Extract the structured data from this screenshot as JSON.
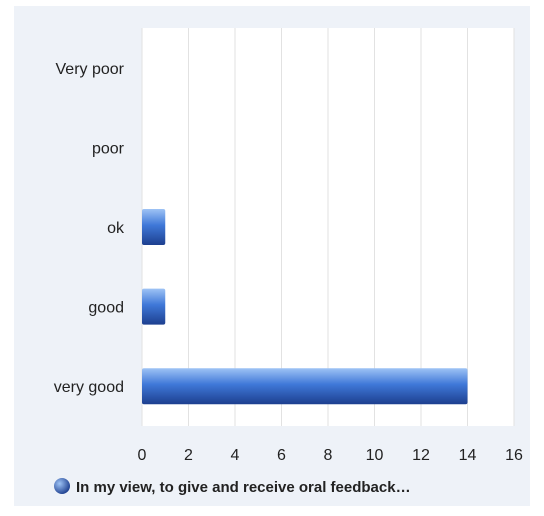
{
  "chart_data": {
    "type": "bar",
    "orientation": "horizontal",
    "categories": [
      "Very poor",
      "poor",
      "ok",
      "good",
      "very good"
    ],
    "series": [
      {
        "name": "In my view, to give and receive oral feedback…",
        "values": [
          0,
          0,
          1,
          1,
          14
        ]
      }
    ],
    "xlim": [
      0,
      16
    ],
    "xticks": [
      "0",
      "2",
      "4",
      "6",
      "8",
      "10",
      "12",
      "14",
      "16"
    ],
    "grid": true,
    "legend_position": "bottom",
    "colors": {
      "bar_dark": "#1d3f8f",
      "bar_mid": "#3f78d8",
      "bar_light": "#9ec3f5",
      "plot_bg": "#ffffff",
      "grid": "#e2e2e2",
      "panel_bg": "#eef2f8"
    }
  }
}
